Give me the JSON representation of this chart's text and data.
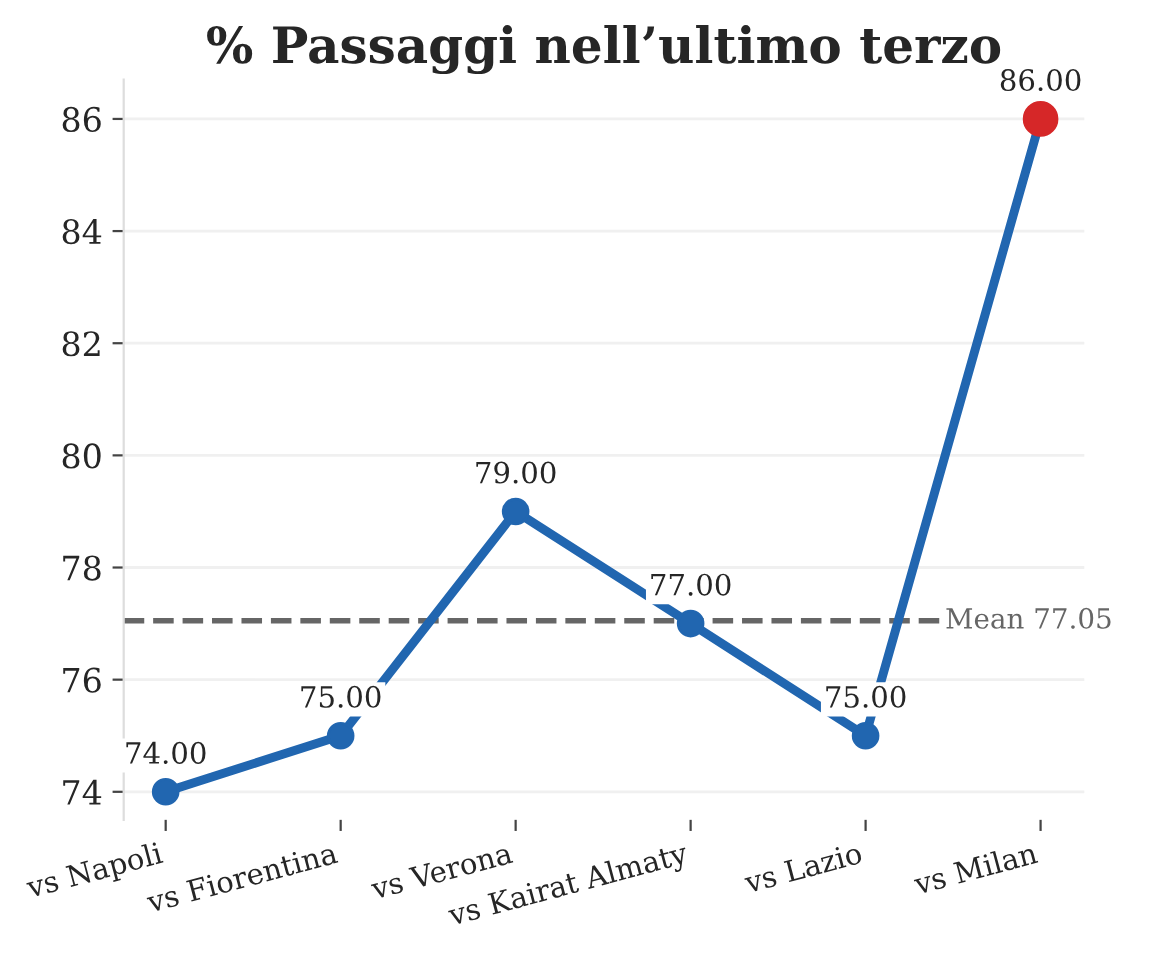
{
  "chart_data": {
    "type": "line",
    "title": "% Passaggi nell’ultimo terzo",
    "categories": [
      "vs Napoli",
      "vs Fiorentina",
      "vs Verona",
      "vs Kairat Almaty",
      "vs Lazio",
      "vs Milan"
    ],
    "series": [
      {
        "color": "#2166b0",
        "values": [
          74,
          75,
          79,
          77,
          75,
          86
        ],
        "colors": [
          "#2166b0",
          "#2166b0",
          "#2166b0",
          "#2166b0",
          "#2166b0",
          "#d62728"
        ],
        "value_labels": [
          "74.00",
          "75.00",
          "79.00",
          "77.00",
          "75.00",
          "86.00"
        ]
      }
    ],
    "ylim": [
      73.5,
      86.7
    ],
    "yticks": [
      74,
      76,
      78,
      80,
      82,
      84,
      86
    ],
    "ref_lines": [
      {
        "axis": "y",
        "value": 77.05,
        "label": "Mean 77.05",
        "color": "#666666",
        "line_style": "dashed"
      }
    ],
    "grid": "y",
    "marker": "circle",
    "line_style": "solid"
  }
}
